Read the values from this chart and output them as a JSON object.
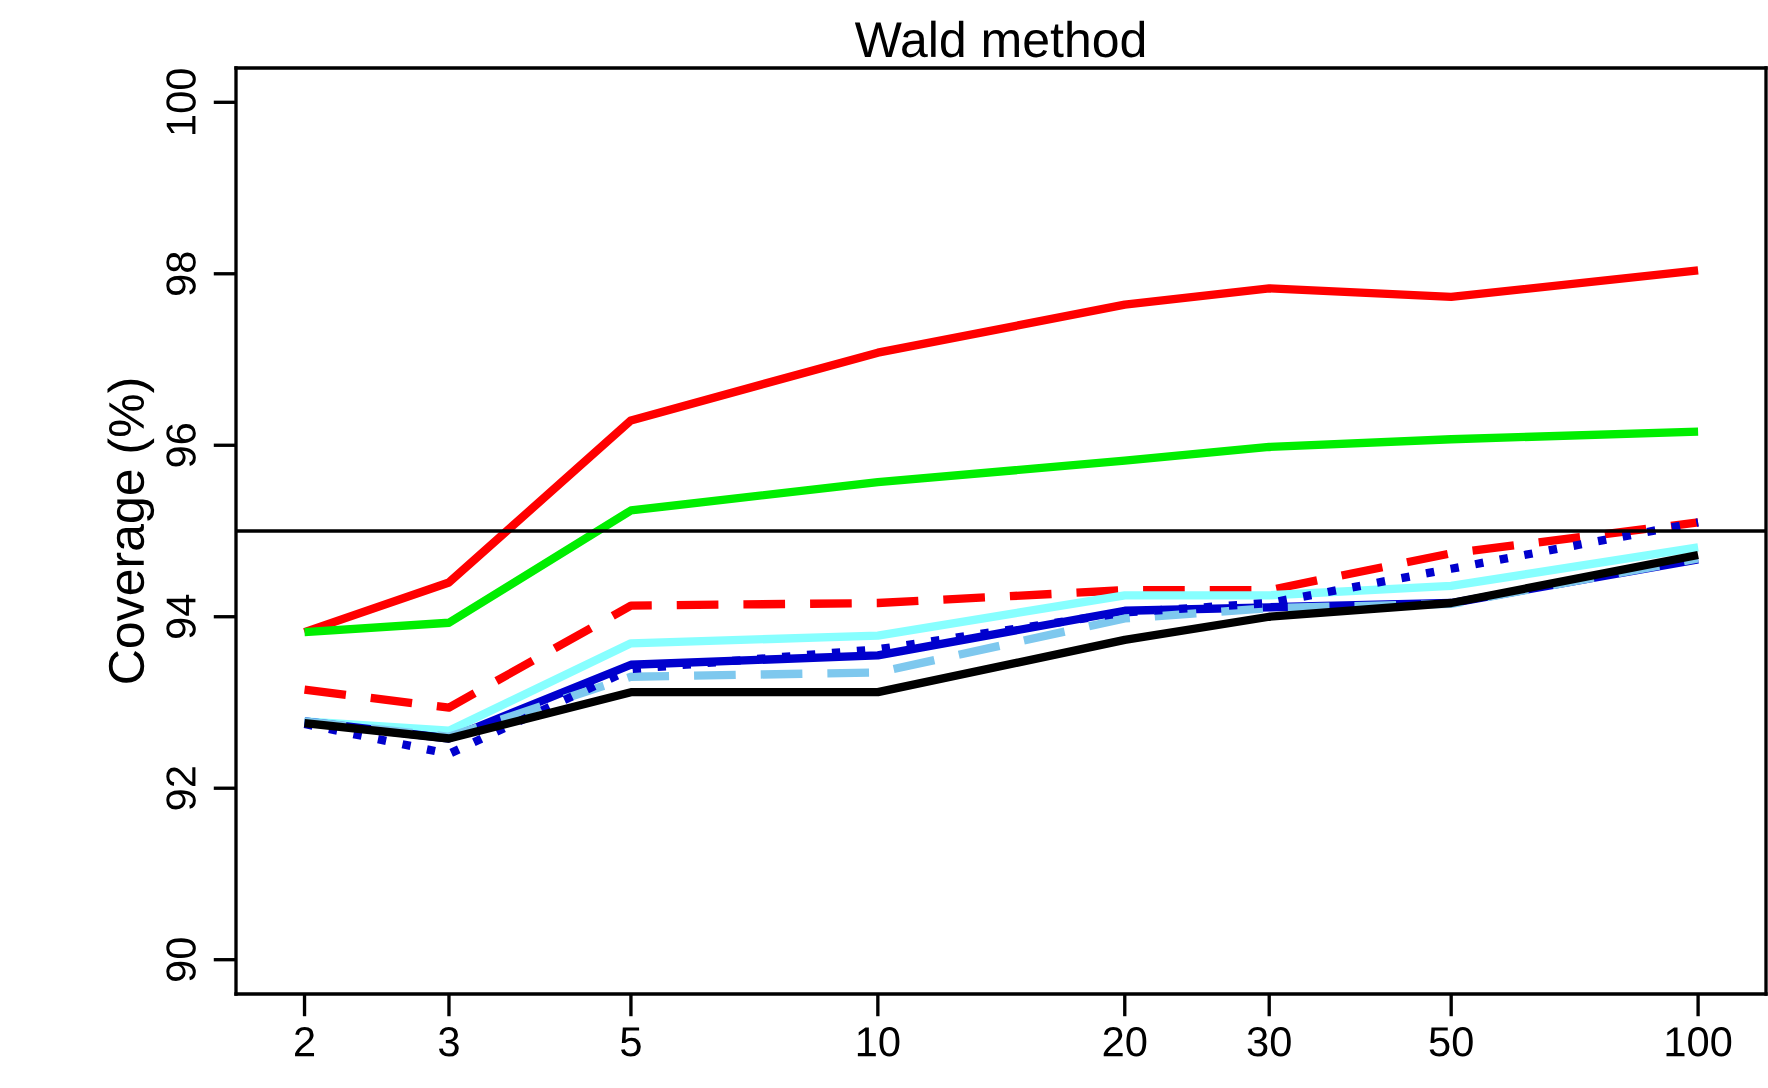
{
  "chart_data": {
    "type": "line",
    "title": "Wald method",
    "ylabel": "Coverage (%)",
    "log": "x",
    "x": [
      2,
      3,
      5,
      10,
      20,
      30,
      50,
      100
    ],
    "xlim": [
      1.65,
      121
    ],
    "xticks": [
      2,
      3,
      5,
      10,
      20,
      30,
      50,
      100
    ],
    "ylim": [
      89.6,
      100.4
    ],
    "yticks": [
      90,
      92,
      94,
      96,
      98,
      100
    ],
    "grid": false,
    "legend": false,
    "marker": "none",
    "ref_lines": [
      {
        "axis": "y",
        "value": 95,
        "color": "#000000",
        "line_style": "solid"
      }
    ],
    "series": [
      {
        "color": "#ff0000",
        "line_style": "solid",
        "values": [
          93.82,
          94.4,
          96.29,
          97.08,
          97.64,
          97.83,
          97.73,
          98.04
        ]
      },
      {
        "color": "#00ee00",
        "line_style": "solid",
        "values": [
          93.82,
          93.93,
          95.24,
          95.57,
          95.82,
          95.98,
          96.07,
          96.16
        ]
      },
      {
        "color": "#ff0000",
        "line_style": "dashed",
        "values": [
          93.15,
          92.94,
          94.13,
          94.16,
          94.31,
          94.31,
          94.74,
          95.1
        ]
      },
      {
        "color": "#87ffff",
        "line_style": "solid",
        "values": [
          92.78,
          92.67,
          93.69,
          93.78,
          94.25,
          94.25,
          94.36,
          94.81
        ]
      },
      {
        "color": "#0000cd",
        "line_style": "solid",
        "values": [
          92.78,
          92.58,
          93.44,
          93.55,
          94.07,
          94.11,
          94.16,
          94.67
        ]
      },
      {
        "color": "#7ec8ee",
        "line_style": "dashed",
        "values": [
          92.78,
          92.6,
          93.3,
          93.35,
          93.98,
          94.1,
          94.15,
          94.68
        ]
      },
      {
        "color": "#0000cd",
        "line_style": "dotted",
        "values": [
          92.75,
          92.4,
          93.39,
          93.62,
          94.05,
          94.16,
          94.56,
          95.1
        ]
      },
      {
        "color": "#000000",
        "line_style": "solid",
        "values": [
          92.76,
          92.58,
          93.12,
          93.12,
          93.73,
          94.0,
          94.16,
          94.72
        ]
      }
    ]
  }
}
